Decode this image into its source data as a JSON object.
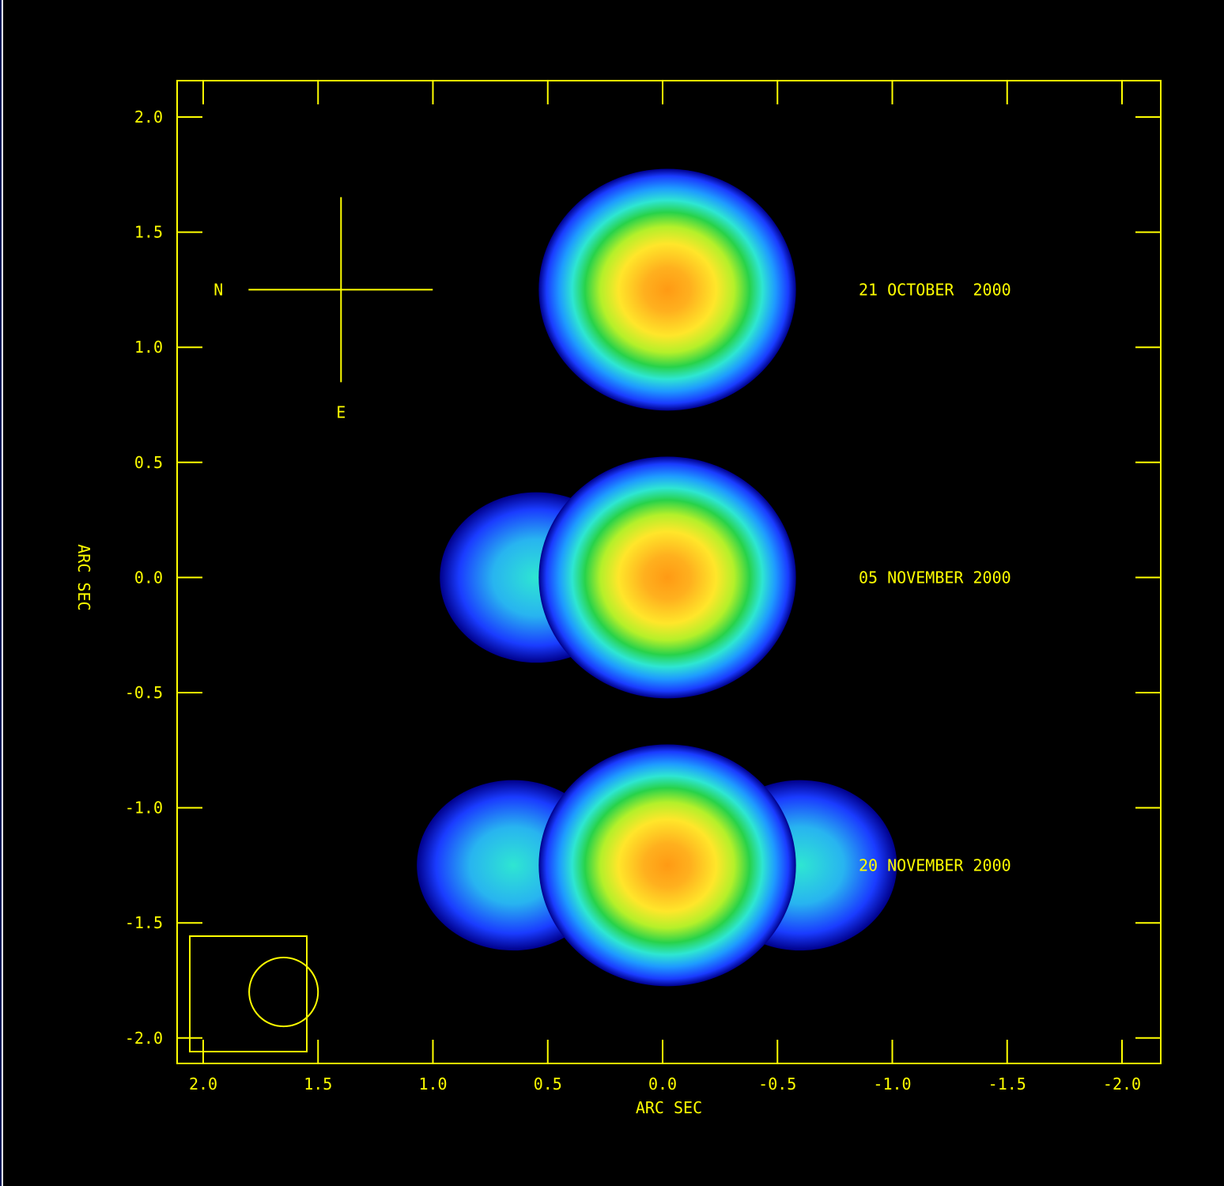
{
  "chart_data": {
    "type": "heatmap",
    "title": "",
    "xlabel": "ARC SEC",
    "ylabel": "ARC SEC",
    "xlim": [
      2.1,
      -2.2
    ],
    "ylim": [
      -2.1,
      2.2
    ],
    "x_ticks": [
      2.0,
      1.5,
      1.0,
      0.5,
      0.0,
      -0.5,
      -1.0,
      -1.5,
      -2.0
    ],
    "x_tick_labels": [
      "2.0",
      "1.5",
      "1.0",
      "0.5",
      "0.0",
      "-0.5",
      "-1.0",
      "-1.5",
      "-2.0"
    ],
    "y_ticks": [
      2.0,
      1.5,
      1.0,
      0.5,
      0.0,
      -0.5,
      -1.0,
      -1.5,
      -2.0
    ],
    "y_tick_labels": [
      "2.0",
      "1.5",
      "1.0",
      "0.5",
      "0.0",
      "-0.5",
      "-1.0",
      "-1.5",
      "-2.0"
    ],
    "colormap": [
      "#00008b",
      "#1a3cff",
      "#1e9bff",
      "#2ee6d2",
      "#28d24a",
      "#b4f02a",
      "#ffe62a",
      "#ff9a14"
    ],
    "background_color": "#000000",
    "axis_color": "#ffff00",
    "orientation": {
      "north_label": "N",
      "east_label": "E",
      "center": [
        1.4,
        1.25
      ]
    },
    "images": [
      {
        "label": "21 OCTOBER  2000",
        "center": [
          0.0,
          1.25
        ],
        "lobes": []
      },
      {
        "label": "05 NOVEMBER 2000",
        "center": [
          0.0,
          0.0
        ],
        "lobes": [
          [
            0.55,
            0.0
          ]
        ]
      },
      {
        "label": "20 NOVEMBER 2000",
        "center": [
          0.0,
          -1.25
        ],
        "lobes": [
          [
            0.65,
            -1.25
          ],
          [
            -0.6,
            -1.25
          ]
        ]
      }
    ],
    "beam": {
      "center": [
        1.65,
        -1.8
      ],
      "radius": 0.15
    }
  }
}
